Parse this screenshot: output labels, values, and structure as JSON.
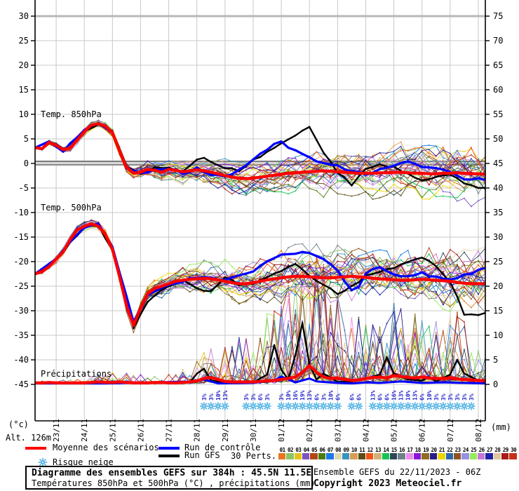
{
  "legend": {
    "mean": "Moyenne des scénarios",
    "control": "Run de contrôle",
    "gfs": "Run GFS",
    "perts": "30 Perts.",
    "snow": "Risque neige"
  },
  "perturbation_numbers": [
    "01",
    "02",
    "03",
    "04",
    "05",
    "06",
    "07",
    "08",
    "09",
    "10",
    "11",
    "12",
    "13",
    "14",
    "15",
    "16",
    "17",
    "18",
    "19",
    "20",
    "21",
    "22",
    "23",
    "24",
    "25",
    "26",
    "27",
    "28",
    "29",
    "30"
  ],
  "chart_data": {
    "type": "line",
    "title": "Diagramme des ensembles GEFS sur 384h : 45.5N 11.5E",
    "subtitle": "Températures 850hPa et 500hPa (°C) , précipitations (mm)",
    "run_info": "Ensemble GEFS du 22/11/2023 - 06Z",
    "copyright": "Copyright 2023 Meteociel.fr",
    "altitude_label": "Alt. 126m",
    "unit_left": "(°c)",
    "unit_right": "(mm)",
    "left_ticks": [
      "30",
      "25",
      "20",
      "15",
      "10",
      "5",
      "0",
      "-5",
      "-10",
      "-15",
      "-20",
      "-25",
      "-30",
      "-35",
      "-40",
      "-45"
    ],
    "right_ticks": [
      "75",
      "70",
      "65",
      "60",
      "55",
      "50",
      "45",
      "40",
      "35",
      "30",
      "25",
      "20",
      "15",
      "10",
      "5",
      "0"
    ],
    "dates": [
      "23/11",
      "24/11",
      "25/11",
      "26/11",
      "27/11",
      "28/11",
      "29/11",
      "30/11",
      "01/12",
      "02/12",
      "03/12",
      "04/12",
      "05/12",
      "06/12",
      "07/12",
      "08/12"
    ],
    "axis_left_range": [
      -45,
      30
    ],
    "axis_right_range": [
      0,
      75
    ],
    "grid": true,
    "panel_labels": {
      "t850": "Temp. 850hPa",
      "t500": "Temp. 500hPa",
      "precip": "Précipitations"
    },
    "series_colors": {
      "mean": "#ff0000",
      "control": "#0000ff",
      "gfs": "#000000"
    },
    "snow_color": "#55b4e4",
    "snow_pct_color": "#2525cd",
    "member_colors": [
      "#e87820",
      "#8cc468",
      "#e4c41c",
      "#7c54c0",
      "#b04810",
      "#4c7c10",
      "#1c78e8",
      "#e0d8b0",
      "#3894bc",
      "#d89c54",
      "#5c4c18",
      "#f05414",
      "#d0b478",
      "#14c454",
      "#2c4858",
      "#708088",
      "#ec8cec",
      "#8818d8",
      "#8c7020",
      "#2c1c88",
      "#ecd800",
      "#2c68ac",
      "#8c5424",
      "#9890e0",
      "#94ec58",
      "#c878d4",
      "#1c24a4",
      "#e0c89c",
      "#a81c1c",
      "#c43018"
    ],
    "t850": {
      "mean": [
        3.2,
        3.0,
        4.3,
        3.7,
        2.8,
        3.2,
        4.8,
        6.5,
        7.8,
        8.1,
        7.6,
        6.3,
        2.5,
        -0.8,
        -2.0,
        -1.8,
        -1.2,
        -1.4,
        -1.8,
        -1.2,
        -1.4,
        -1.7,
        -1.5,
        -1.3,
        -1.5,
        -1.8,
        -2.1,
        -2.5,
        -2.8,
        -3.0,
        -3.1,
        -3.0,
        -2.8,
        -2.6,
        -2.4,
        -2.2,
        -2.0,
        -1.9,
        -1.8,
        -1.7,
        -1.6,
        -1.5,
        -1.6,
        -1.7,
        -1.8,
        -1.9,
        -2.0,
        -2.0,
        -2.0,
        -1.9,
        -1.9,
        -1.8,
        -1.8,
        -1.9,
        -2.0,
        -2.0,
        -2.1,
        -2.1,
        -2.0,
        -2.0,
        -1.9,
        -2.0,
        -2.1,
        -2.1,
        -2.2
      ],
      "control_kp": [
        [
          0,
          3.2
        ],
        [
          2,
          4.5
        ],
        [
          4,
          2.6
        ],
        [
          7,
          6.6
        ],
        [
          9,
          8.3
        ],
        [
          11,
          6.2
        ],
        [
          13,
          -1.0
        ],
        [
          15,
          -2.0
        ],
        [
          17,
          -1.2
        ],
        [
          19,
          -1.0
        ],
        [
          21,
          -2.0
        ],
        [
          23,
          -1.0
        ],
        [
          25,
          -2.2
        ],
        [
          27,
          -2.8
        ],
        [
          29,
          -1.5
        ],
        [
          31,
          1.0
        ],
        [
          33,
          3.0
        ],
        [
          35,
          4.5
        ],
        [
          36,
          3.4
        ],
        [
          37,
          2.6
        ],
        [
          38,
          2.0
        ],
        [
          39,
          1.4
        ],
        [
          40,
          0.4
        ],
        [
          41,
          0.0
        ],
        [
          43,
          -0.6
        ],
        [
          45,
          -1.6
        ],
        [
          47,
          -2.2
        ],
        [
          49,
          -1.4
        ],
        [
          51,
          -0.4
        ],
        [
          53,
          0.2
        ],
        [
          55,
          -0.6
        ],
        [
          57,
          -1.2
        ],
        [
          59,
          -1.5
        ],
        [
          61,
          -3.2
        ],
        [
          63,
          -3.0
        ],
        [
          64,
          -3.2
        ]
      ],
      "gfs_kp": [
        [
          0,
          3.2
        ],
        [
          2,
          4.4
        ],
        [
          4,
          2.7
        ],
        [
          7,
          6.4
        ],
        [
          9,
          8.0
        ],
        [
          11,
          6.4
        ],
        [
          13,
          -0.6
        ],
        [
          15,
          -2.2
        ],
        [
          17,
          -1.0
        ],
        [
          19,
          -0.8
        ],
        [
          21,
          -1.8
        ],
        [
          23,
          1.0
        ],
        [
          24,
          1.3
        ],
        [
          25,
          0.2
        ],
        [
          27,
          -0.8
        ],
        [
          29,
          -1.6
        ],
        [
          31,
          0.6
        ],
        [
          33,
          2.2
        ],
        [
          35,
          4.0
        ],
        [
          37,
          5.5
        ],
        [
          38,
          6.8
        ],
        [
          39,
          7.2
        ],
        [
          40,
          5.0
        ],
        [
          41,
          2.2
        ],
        [
          43,
          -1.8
        ],
        [
          45,
          -4.4
        ],
        [
          47,
          -1.2
        ],
        [
          49,
          -0.2
        ],
        [
          51,
          -0.8
        ],
        [
          53,
          -2.2
        ],
        [
          55,
          -3.4
        ],
        [
          57,
          -2.8
        ],
        [
          59,
          -2.4
        ],
        [
          61,
          -4.0
        ],
        [
          63,
          -4.8
        ],
        [
          64,
          -5.2
        ]
      ],
      "spread_by_day": [
        0.4,
        0.6,
        0.7,
        0.9,
        1.4,
        1.8,
        2.2,
        2.6,
        3.0,
        3.3,
        3.5,
        3.7,
        3.9,
        4.1,
        4.3,
        4.6,
        4.8
      ],
      "clamp": [
        -10.5,
        9.5
      ]
    },
    "t500": {
      "mean": [
        -22.5,
        -22.0,
        -21.0,
        -19.5,
        -18.0,
        -15.5,
        -13.5,
        -12.8,
        -12.3,
        -12.8,
        -14.5,
        -17.5,
        -23.0,
        -29.0,
        -33.0,
        -29.5,
        -26.5,
        -25.5,
        -25.0,
        -24.5,
        -24.0,
        -23.8,
        -23.6,
        -23.5,
        -23.4,
        -23.5,
        -23.7,
        -24.0,
        -24.3,
        -24.5,
        -24.5,
        -24.3,
        -24.0,
        -23.7,
        -23.5,
        -23.3,
        -23.1,
        -23.0,
        -23.0,
        -23.1,
        -23.2,
        -23.3,
        -23.3,
        -23.2,
        -23.1,
        -23.0,
        -23.1,
        -23.2,
        -23.4,
        -23.5,
        -23.6,
        -23.7,
        -23.8,
        -23.8,
        -23.7,
        -23.6,
        -23.7,
        -23.8,
        -23.9,
        -24.0,
        -24.2,
        -24.4,
        -24.5,
        -24.5,
        -24.5
      ],
      "control_kp": [
        [
          0,
          -22.5
        ],
        [
          3,
          -19.4
        ],
        [
          7,
          -12.9
        ],
        [
          9,
          -12.5
        ],
        [
          11,
          -17.0
        ],
        [
          14,
          -32.4
        ],
        [
          16,
          -27.0
        ],
        [
          19,
          -24.6
        ],
        [
          23,
          -23.2
        ],
        [
          27,
          -23.8
        ],
        [
          31,
          -22.0
        ],
        [
          33,
          -20.0
        ],
        [
          35,
          -18.8
        ],
        [
          37,
          -18.2
        ],
        [
          39,
          -18.0
        ],
        [
          41,
          -19.5
        ],
        [
          43,
          -22.0
        ],
        [
          45,
          -26.0
        ],
        [
          46,
          -25.0
        ],
        [
          47,
          -22.5
        ],
        [
          49,
          -21.0
        ],
        [
          51,
          -22.5
        ],
        [
          53,
          -23.0
        ],
        [
          55,
          -22.4
        ],
        [
          57,
          -23.2
        ],
        [
          59,
          -23.6
        ],
        [
          61,
          -22.8
        ],
        [
          63,
          -21.8
        ],
        [
          64,
          -21.4
        ]
      ],
      "gfs_kp": [
        [
          0,
          -22.5
        ],
        [
          3,
          -19.6
        ],
        [
          7,
          -13.0
        ],
        [
          9,
          -12.6
        ],
        [
          11,
          -17.6
        ],
        [
          14,
          -33.4
        ],
        [
          16,
          -28.0
        ],
        [
          19,
          -24.8
        ],
        [
          21,
          -24.0
        ],
        [
          23,
          -25.4
        ],
        [
          25,
          -26.0
        ],
        [
          27,
          -23.2
        ],
        [
          29,
          -24.6
        ],
        [
          31,
          -24.8
        ],
        [
          33,
          -23.0
        ],
        [
          35,
          -22.0
        ],
        [
          37,
          -20.6
        ],
        [
          39,
          -23.0
        ],
        [
          41,
          -24.6
        ],
        [
          43,
          -26.8
        ],
        [
          45,
          -25.0
        ],
        [
          47,
          -23.0
        ],
        [
          49,
          -22.0
        ],
        [
          51,
          -21.4
        ],
        [
          53,
          -20.2
        ],
        [
          55,
          -19.2
        ],
        [
          57,
          -21.0
        ],
        [
          59,
          -24.0
        ],
        [
          61,
          -30.6
        ],
        [
          63,
          -31.0
        ],
        [
          64,
          -30.2
        ]
      ],
      "spread_by_day": [
        0.5,
        0.7,
        0.9,
        1.3,
        2.0,
        2.4,
        3.0,
        3.6,
        4.0,
        4.4,
        4.7,
        5.0,
        5.2,
        5.4,
        5.6,
        5.8,
        6.0
      ],
      "clamp": [
        -36.3,
        -11.5
      ]
    },
    "precip": {
      "mean": [
        0.3,
        0.3,
        0.4,
        0.3,
        0.3,
        0.3,
        0.3,
        0.3,
        0.4,
        0.5,
        0.4,
        0.4,
        0.5,
        0.4,
        0.3,
        0.3,
        0.3,
        0.4,
        0.4,
        0.3,
        0.3,
        0.4,
        0.5,
        0.7,
        1.2,
        1.4,
        1.0,
        0.6,
        0.5,
        0.5,
        0.5,
        0.5,
        0.6,
        0.7,
        0.8,
        1.0,
        1.2,
        1.5,
        2.5,
        3.8,
        2.5,
        1.5,
        1.2,
        1.3,
        1.0,
        0.8,
        0.9,
        1.2,
        1.4,
        1.5,
        1.3,
        1.8,
        1.6,
        1.4,
        1.3,
        1.5,
        1.3,
        1.2,
        1.2,
        1.3,
        1.1,
        1.0,
        0.9,
        0.8,
        0.7
      ],
      "control_kp": [
        [
          0,
          0.2
        ],
        [
          10,
          0.2
        ],
        [
          23,
          0.6
        ],
        [
          24,
          1.0
        ],
        [
          26,
          0.2
        ],
        [
          31,
          0.3
        ],
        [
          34,
          0.8
        ],
        [
          35,
          1.6
        ],
        [
          37,
          0.4
        ],
        [
          39,
          1.2
        ],
        [
          40,
          0.6
        ],
        [
          43,
          0.3
        ],
        [
          45,
          0.2
        ],
        [
          47,
          0.4
        ],
        [
          49,
          0.3
        ],
        [
          52,
          0.6
        ],
        [
          55,
          0.3
        ],
        [
          58,
          0.4
        ],
        [
          61,
          0.3
        ],
        [
          64,
          0.2
        ]
      ],
      "gfs_kp": [
        [
          0,
          0.2
        ],
        [
          10,
          0.3
        ],
        [
          22,
          0.4
        ],
        [
          23,
          2.2
        ],
        [
          24,
          3.2
        ],
        [
          25,
          0.8
        ],
        [
          27,
          0.3
        ],
        [
          31,
          0.4
        ],
        [
          33,
          2.0
        ],
        [
          34,
          8.0
        ],
        [
          35,
          3.0
        ],
        [
          36,
          1.0
        ],
        [
          37,
          6.0
        ],
        [
          38,
          12.5
        ],
        [
          39,
          4.0
        ],
        [
          40,
          1.0
        ],
        [
          41,
          2.2
        ],
        [
          43,
          0.5
        ],
        [
          45,
          0.6
        ],
        [
          47,
          1.2
        ],
        [
          49,
          2.0
        ],
        [
          50,
          5.5
        ],
        [
          51,
          2.2
        ],
        [
          53,
          1.0
        ],
        [
          55,
          0.8
        ],
        [
          56,
          1.5
        ],
        [
          57,
          0.6
        ],
        [
          59,
          2.0
        ],
        [
          60,
          5.0
        ],
        [
          61,
          2.2
        ],
        [
          63,
          0.8
        ],
        [
          64,
          0.5
        ]
      ],
      "spike_by_day": [
        0.6,
        0.8,
        1.5,
        2.5,
        1.5,
        2.0,
        5.0,
        8.0,
        12.0,
        22.0,
        26.0,
        14.0,
        12.0,
        15.0,
        12.0,
        14.0,
        8.0
      ],
      "spike_prob_by_day": [
        0.05,
        0.05,
        0.1,
        0.15,
        0.08,
        0.1,
        0.25,
        0.3,
        0.3,
        0.4,
        0.4,
        0.35,
        0.35,
        0.35,
        0.35,
        0.35,
        0.3
      ],
      "clamp": [
        0,
        26
      ]
    },
    "snow_groups": [
      {
        "start": 24,
        "pcts": [
          "3%",
          "3%",
          "10%",
          "13%"
        ]
      },
      {
        "start": 30,
        "pcts": [
          "3%",
          "3%",
          "6%",
          "3%"
        ]
      },
      {
        "start": 35,
        "pcts": [
          "3%",
          "10%",
          "16%",
          "19%",
          "13%",
          "6%",
          "3%",
          "10%",
          "6%"
        ]
      },
      {
        "start": 45,
        "pcts": [
          "6%",
          "6%"
        ]
      },
      {
        "start": 48,
        "pcts": [
          "13%",
          "6%",
          "6%",
          "16%",
          "13%",
          "10%",
          "13%",
          "6%",
          "10%",
          "3%",
          "3%",
          "3%",
          "3%",
          "3%",
          "3%"
        ]
      }
    ]
  }
}
